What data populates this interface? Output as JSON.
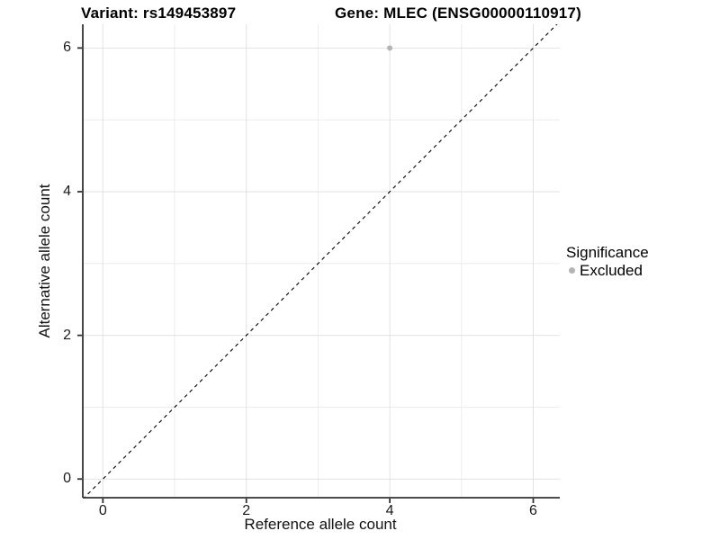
{
  "chart_data": {
    "type": "scatter",
    "title_left": "Variant: rs149453897",
    "title_right": "Gene: MLEC (ENSG00000110917)",
    "xlabel": "Reference allele count",
    "ylabel": "Alternative allele count",
    "xlim": [
      -0.28,
      6.37
    ],
    "ylim": [
      -0.26,
      6.33
    ],
    "x_ticks": [
      0,
      2,
      4,
      6
    ],
    "y_ticks": [
      0,
      2,
      4,
      6
    ],
    "minor_grid_x": [
      1,
      3,
      5
    ],
    "minor_grid_y": [
      1,
      3,
      5
    ],
    "grid": "on",
    "legend_position": "right",
    "series": [
      {
        "name": "Excluded",
        "color": "#b4b4b4",
        "points": [
          {
            "x": 4,
            "y": 6
          }
        ]
      }
    ],
    "reference_line": {
      "kind": "identity",
      "slope": 1,
      "intercept": 0,
      "style": "dashed",
      "color": "#000000"
    },
    "legend": {
      "title": "Significance",
      "entries": [
        {
          "label": "Excluded",
          "color": "#b4b4b4"
        }
      ]
    },
    "colors": {
      "background": "#ffffff",
      "grid_major": "#e2e2e2",
      "grid_minor": "#ececec",
      "axis_line": "#333333",
      "point": "#b4b4b4",
      "tick_text": "#1a1a1a"
    }
  }
}
